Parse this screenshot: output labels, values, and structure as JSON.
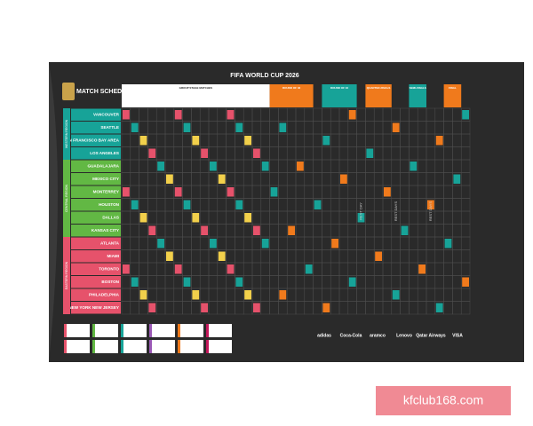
{
  "header": {
    "title": "FIFA WORLD CUP 2026",
    "logo": "MATCH SCHEDULE"
  },
  "stages": [
    "GROUP STAGE MATCHES",
    "ROUND OF 32",
    "ROUND OF 16",
    "QUARTER-FINALS",
    "SEMI-FINALS",
    "FINAL"
  ],
  "regions": [
    {
      "name": "WESTERN REGION",
      "cities": [
        "VANCOUVER",
        "SEATTLE",
        "SAN FRANCISCO BAY AREA",
        "LOS ANGELES"
      ]
    },
    {
      "name": "CENTRAL REGION",
      "cities": [
        "GUADALAJARA",
        "MEXICO CITY",
        "MONTERREY",
        "HOUSTON",
        "DALLAS",
        "KANSAS CITY"
      ]
    },
    {
      "name": "EASTERN REGION",
      "cities": [
        "ATLANTA",
        "MIAMI",
        "TORONTO",
        "BOSTON",
        "PHILADELPHIA",
        "NEW YORK NEW JERSEY"
      ]
    }
  ],
  "rest_days": [
    "REST DAY",
    "REST DAYS",
    "REST DAYS"
  ],
  "sponsors": [
    "adidas",
    "Coca-Cola",
    "aramco",
    "Lenovo",
    "Qatar Airways",
    "VISA"
  ],
  "watermark": "kfclub168.com"
}
